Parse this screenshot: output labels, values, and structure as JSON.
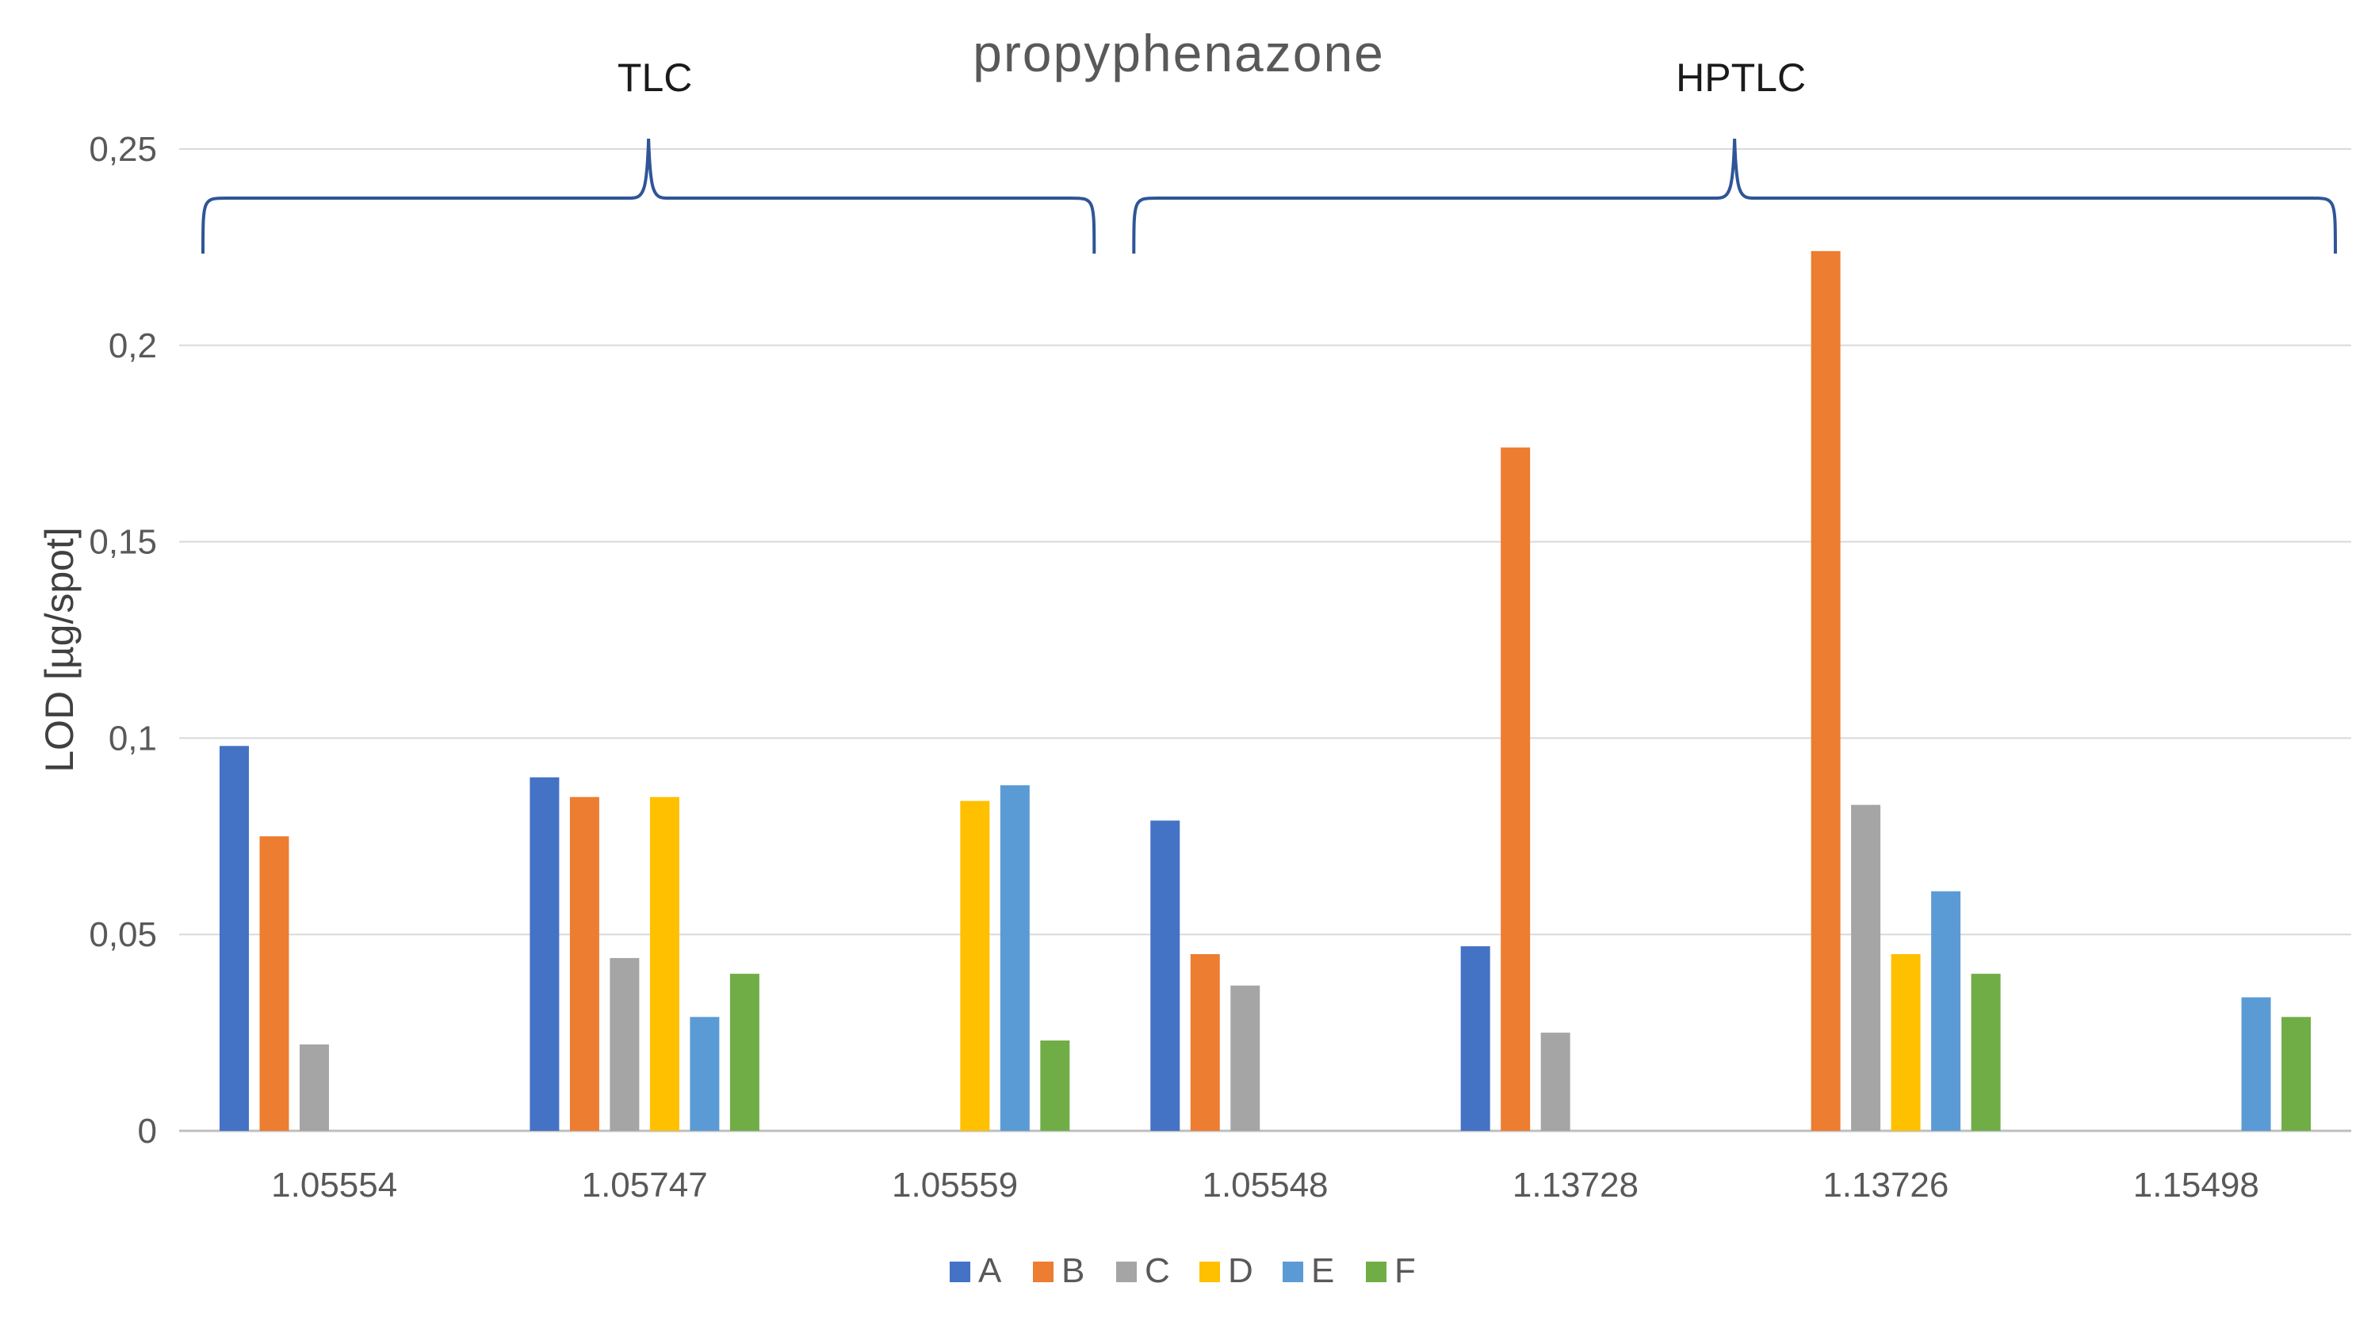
{
  "chart_data": {
    "type": "bar",
    "title": "propyphenazone",
    "xlabel": "",
    "ylabel": "LOD [µg/spot]",
    "ylim": [
      0,
      0.25
    ],
    "yticks": [
      {
        "value": 0,
        "label": "0"
      },
      {
        "value": 0.05,
        "label": "0,05"
      },
      {
        "value": 0.1,
        "label": "0,1"
      },
      {
        "value": 0.15,
        "label": "0,15"
      },
      {
        "value": 0.2,
        "label": "0,2"
      },
      {
        "value": 0.25,
        "label": "0,25"
      }
    ],
    "grid": true,
    "legend_position": "bottom",
    "categories": [
      "1.05554",
      "1.05747",
      "1.05559",
      "1.05548",
      "1.13728",
      "1.13726",
      "1.15498"
    ],
    "series": [
      {
        "name": "A",
        "color": "#4472c4",
        "values": [
          0.098,
          0.09,
          null,
          0.079,
          0.047,
          null,
          null
        ]
      },
      {
        "name": "B",
        "color": "#ed7d31",
        "values": [
          0.075,
          0.085,
          null,
          0.045,
          0.174,
          0.224,
          null
        ]
      },
      {
        "name": "C",
        "color": "#a5a5a5",
        "values": [
          0.022,
          0.044,
          null,
          0.037,
          0.025,
          0.083,
          null
        ]
      },
      {
        "name": "D",
        "color": "#ffc000",
        "values": [
          null,
          0.085,
          0.084,
          null,
          null,
          0.045,
          null
        ]
      },
      {
        "name": "E",
        "color": "#5b9bd5",
        "values": [
          null,
          0.029,
          0.088,
          null,
          null,
          0.061,
          0.034
        ]
      },
      {
        "name": "F",
        "color": "#70ad47",
        "values": [
          null,
          0.04,
          0.023,
          null,
          null,
          0.04,
          0.029
        ]
      }
    ],
    "annotations": [
      {
        "label": "TLC",
        "from_category": "1.05554",
        "to_category": "1.05559"
      },
      {
        "label": "HPTLC",
        "from_category": "1.05548",
        "to_category": "1.15498"
      }
    ]
  }
}
